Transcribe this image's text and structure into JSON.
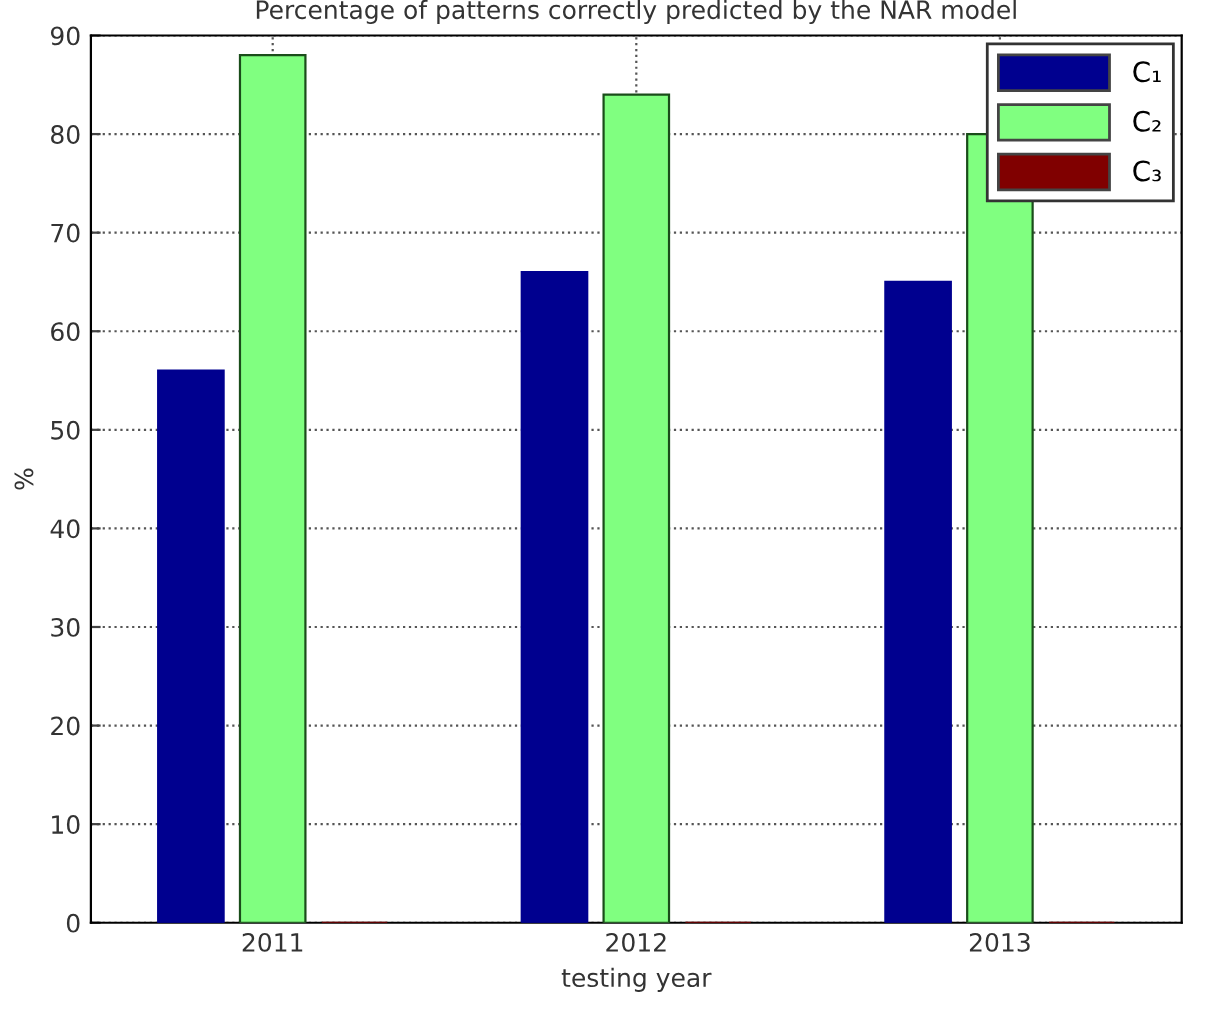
{
  "chart_data": {
    "type": "bar",
    "title": "Percentage of patterns correctly predicted by the NAR model",
    "xlabel": "testing year",
    "ylabel": "%",
    "categories": [
      "2011",
      "2012",
      "2013"
    ],
    "series": [
      {
        "name": "C₁",
        "color": "#00008f",
        "values": [
          56,
          66,
          65
        ]
      },
      {
        "name": "C₂",
        "color": "#80ff80",
        "values": [
          88,
          84,
          80
        ]
      },
      {
        "name": "C₃",
        "color": "#800000",
        "values": [
          0,
          0,
          0
        ]
      }
    ],
    "ylim": [
      0,
      90
    ],
    "yticks": [
      0,
      10,
      20,
      30,
      40,
      50,
      60,
      70,
      80,
      90
    ],
    "grid": true,
    "legend": "top right"
  }
}
